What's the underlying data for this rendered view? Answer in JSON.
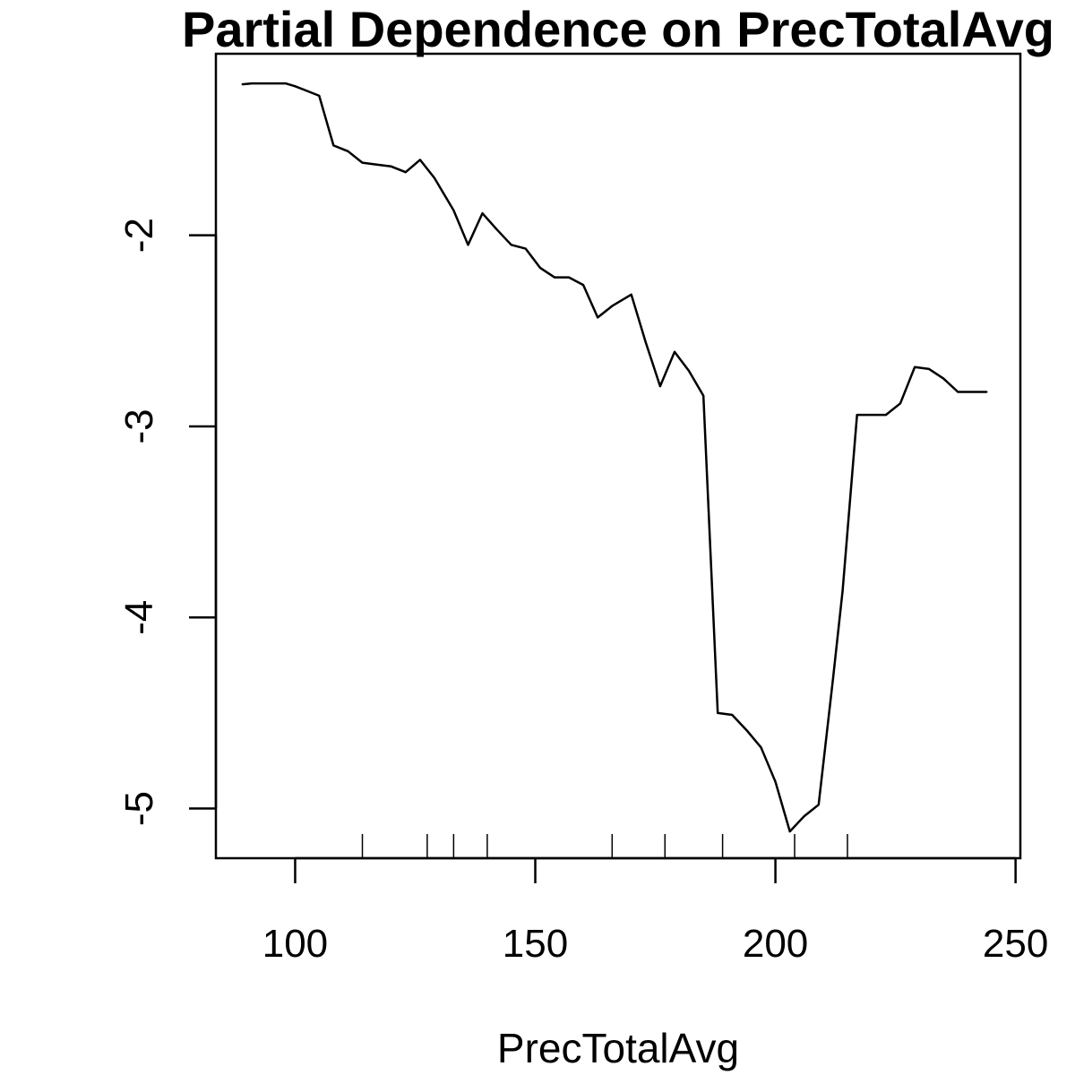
{
  "chart_data": {
    "type": "line",
    "title": "Partial Dependence on PrecTotalAvg",
    "xlabel": "PrecTotalAvg",
    "ylabel": "",
    "xlim": [
      83.5,
      251
    ],
    "ylim": [
      -5.26,
      -1.05
    ],
    "x_ticks": [
      100,
      150,
      200,
      250
    ],
    "y_ticks": [
      -5,
      -4,
      -3,
      -2
    ],
    "x_tick_labels": [
      "100",
      "150",
      "200",
      "250"
    ],
    "y_tick_labels": [
      "-5",
      "-4",
      "-3",
      "-2"
    ],
    "grid": false,
    "legend": "none",
    "line_color": "#000000",
    "series": [
      {
        "x": [
          89,
          91,
          92.5,
          95,
          98,
          100,
          102,
          105,
          108,
          111,
          114,
          117,
          120,
          123,
          126,
          129,
          133,
          136,
          139,
          142,
          145,
          148,
          151,
          154,
          157,
          160,
          163,
          166,
          170,
          173,
          176,
          179,
          182,
          185,
          188,
          191,
          194,
          197,
          200,
          203,
          206,
          209,
          212,
          214,
          217,
          220,
          223,
          226,
          229,
          232,
          235,
          238,
          241,
          244
        ],
        "y": [
          -1.21,
          -1.205,
          -1.205,
          -1.205,
          -1.205,
          -1.22,
          -1.24,
          -1.27,
          -1.53,
          -1.56,
          -1.62,
          -1.63,
          -1.64,
          -1.67,
          -1.605,
          -1.7,
          -1.87,
          -2.05,
          -1.885,
          -1.97,
          -2.05,
          -2.07,
          -2.17,
          -2.22,
          -2.22,
          -2.26,
          -2.43,
          -2.37,
          -2.31,
          -2.56,
          -2.79,
          -2.61,
          -2.71,
          -2.84,
          -4.5,
          -4.51,
          -4.59,
          -4.68,
          -4.86,
          -5.12,
          -5.04,
          -4.98,
          -4.32,
          -3.86,
          -2.94,
          -2.94,
          -2.94,
          -2.88,
          -2.69,
          -2.7,
          -2.75,
          -2.82,
          -2.82,
          -2.82
        ]
      }
    ],
    "rug_x": [
      114,
      127.5,
      133,
      140,
      166,
      177,
      189,
      204,
      215
    ]
  }
}
